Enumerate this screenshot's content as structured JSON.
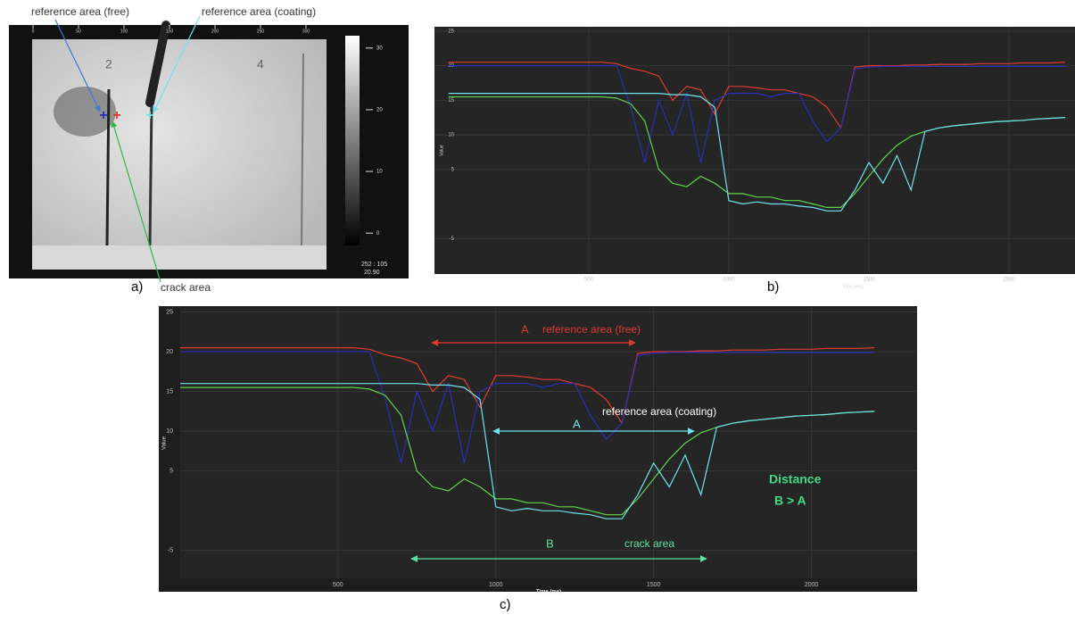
{
  "image": {
    "label": "a)",
    "annotations": {
      "free": "reference  area (free)",
      "coating": "reference  area (coating)",
      "crack": "crack area"
    },
    "top_ticks": [
      0,
      50,
      100,
      150,
      200,
      250,
      300
    ],
    "plate_labels": [
      "2",
      "4"
    ],
    "colorbar_ticks": [
      30,
      20,
      10,
      0
    ],
    "readout": [
      "252 : 105",
      "20.90"
    ]
  },
  "chart_data": [
    {
      "type": "line",
      "panel_label": "b)",
      "xlabel": "Time (ms)",
      "ylabel": "Value",
      "xlim": [
        -50,
        2235
      ],
      "ylim": [
        -10,
        25.5
      ],
      "xticks": [
        500,
        1000,
        1500,
        2000
      ],
      "yticks": [
        -5,
        5,
        10,
        15,
        20,
        25
      ],
      "grid": true,
      "x": [
        0,
        50,
        100,
        150,
        200,
        250,
        300,
        350,
        400,
        450,
        500,
        550,
        600,
        650,
        700,
        750,
        800,
        850,
        900,
        950,
        1000,
        1050,
        1100,
        1150,
        1200,
        1250,
        1300,
        1350,
        1400,
        1450,
        1500,
        1550,
        1600,
        1650,
        1700,
        1750,
        1800,
        1850,
        1900,
        1950,
        2000,
        2050,
        2100,
        2150,
        2200
      ],
      "series": [
        {
          "color": "#e03a2f",
          "values": [
            20.5,
            20.5,
            20.5,
            20.5,
            20.5,
            20.5,
            20.5,
            20.5,
            20.5,
            20.5,
            20.5,
            20.5,
            20.3,
            19.6,
            19.2,
            18.5,
            15,
            17,
            16.5,
            13,
            17,
            17,
            16.8,
            16.5,
            16.5,
            16,
            15.5,
            14,
            11,
            19.8,
            20,
            20,
            20,
            20.1,
            20.1,
            20.2,
            20.2,
            20.2,
            20.3,
            20.3,
            20.3,
            20.4,
            20.4,
            20.4,
            20.5
          ]
        },
        {
          "color": "#2a2fb8",
          "values": [
            20,
            20,
            20,
            20,
            20,
            20,
            20,
            20,
            20,
            20,
            20,
            20,
            20,
            14,
            6,
            15,
            10,
            16,
            6,
            15,
            16,
            16,
            16,
            15.5,
            16,
            16,
            12,
            9,
            11,
            19.5,
            19.8,
            19.9,
            19.9,
            19.9,
            19.9,
            19.9,
            19.9,
            19.9,
            19.9,
            19.9,
            19.9,
            19.9,
            19.9,
            19.9,
            19.9
          ]
        },
        {
          "color": "#5ed64a",
          "values": [
            15.5,
            15.5,
            15.5,
            15.5,
            15.5,
            15.5,
            15.5,
            15.5,
            15.5,
            15.5,
            15.5,
            15.5,
            15.3,
            14.5,
            12,
            5,
            3,
            2.5,
            4,
            3,
            1.5,
            1.5,
            1,
            1,
            0.5,
            0.5,
            0,
            -0.5,
            -0.5,
            1.5,
            4,
            6.5,
            8.5,
            9.8,
            10.5,
            11,
            11.3,
            11.5,
            11.7,
            11.9,
            12,
            12.1,
            12.3,
            12.4,
            12.5
          ]
        },
        {
          "color": "#6fe3ee",
          "values": [
            16,
            16,
            16,
            16,
            16,
            16,
            16,
            16,
            16,
            16,
            16,
            16,
            16,
            16,
            16,
            16,
            15.8,
            15.8,
            15.5,
            14,
            0.5,
            0,
            0.3,
            0,
            0,
            -0.3,
            -0.5,
            -1,
            -1,
            2,
            6,
            3,
            7,
            2,
            10.5,
            11,
            11.3,
            11.5,
            11.7,
            11.9,
            12,
            12.1,
            12.3,
            12.4,
            12.5
          ]
        }
      ]
    },
    {
      "type": "line",
      "panel_label": "c)",
      "xlabel": "Time (ms)",
      "ylabel": "Value",
      "xlim": [
        0,
        2335
      ],
      "ylim": [
        -8.5,
        25.5
      ],
      "xticks": [
        500,
        1000,
        1500,
        2000
      ],
      "yticks": [
        -5,
        5,
        10,
        15,
        20,
        25
      ],
      "grid": true,
      "x": [
        0,
        50,
        100,
        150,
        200,
        250,
        300,
        350,
        400,
        450,
        500,
        550,
        600,
        650,
        700,
        750,
        800,
        850,
        900,
        950,
        1000,
        1050,
        1100,
        1150,
        1200,
        1250,
        1300,
        1350,
        1400,
        1450,
        1500,
        1550,
        1600,
        1650,
        1700,
        1750,
        1800,
        1850,
        1900,
        1950,
        2000,
        2050,
        2100,
        2150,
        2200
      ],
      "series": [
        {
          "color": "#e03a2f",
          "values": [
            20.5,
            20.5,
            20.5,
            20.5,
            20.5,
            20.5,
            20.5,
            20.5,
            20.5,
            20.5,
            20.5,
            20.5,
            20.3,
            19.6,
            19.2,
            18.5,
            15,
            17,
            16.5,
            13,
            17,
            17,
            16.8,
            16.5,
            16.5,
            16,
            15.5,
            14,
            11,
            19.8,
            20,
            20,
            20,
            20.1,
            20.1,
            20.2,
            20.2,
            20.2,
            20.3,
            20.3,
            20.3,
            20.4,
            20.4,
            20.4,
            20.5
          ]
        },
        {
          "color": "#2a2fb8",
          "values": [
            20,
            20,
            20,
            20,
            20,
            20,
            20,
            20,
            20,
            20,
            20,
            20,
            20,
            14,
            6,
            15,
            10,
            16,
            6,
            15,
            16,
            16,
            16,
            15.5,
            16,
            16,
            12,
            9,
            11,
            19.5,
            19.8,
            19.9,
            19.9,
            19.9,
            19.9,
            19.9,
            19.9,
            19.9,
            19.9,
            19.9,
            19.9,
            19.9,
            19.9,
            19.9,
            19.9
          ]
        },
        {
          "color": "#5ed64a",
          "values": [
            15.5,
            15.5,
            15.5,
            15.5,
            15.5,
            15.5,
            15.5,
            15.5,
            15.5,
            15.5,
            15.5,
            15.5,
            15.3,
            14.5,
            12,
            5,
            3,
            2.5,
            4,
            3,
            1.5,
            1.5,
            1,
            1,
            0.5,
            0.5,
            0,
            -0.5,
            -0.5,
            1.5,
            4,
            6.5,
            8.5,
            9.8,
            10.5,
            11,
            11.3,
            11.5,
            11.7,
            11.9,
            12,
            12.1,
            12.3,
            12.4,
            12.5
          ]
        },
        {
          "color": "#6fe3ee",
          "values": [
            16,
            16,
            16,
            16,
            16,
            16,
            16,
            16,
            16,
            16,
            16,
            16,
            16,
            16,
            16,
            16,
            15.8,
            15.8,
            15.5,
            14,
            0.5,
            0,
            0.3,
            0,
            0,
            -0.3,
            -0.5,
            -1,
            -1,
            2,
            6,
            3,
            7,
            2,
            10.5,
            11,
            11.3,
            11.5,
            11.7,
            11.9,
            12,
            12.1,
            12.3,
            12.4,
            12.5
          ]
        }
      ],
      "annotations": {
        "free_letter": "A",
        "free": "reference  area (free)",
        "coating_letter": "A",
        "coating": "reference  area (coating)",
        "crack_letter": "B",
        "crack": "crack area",
        "distance": "Distance",
        "relation": "B > A"
      }
    }
  ]
}
